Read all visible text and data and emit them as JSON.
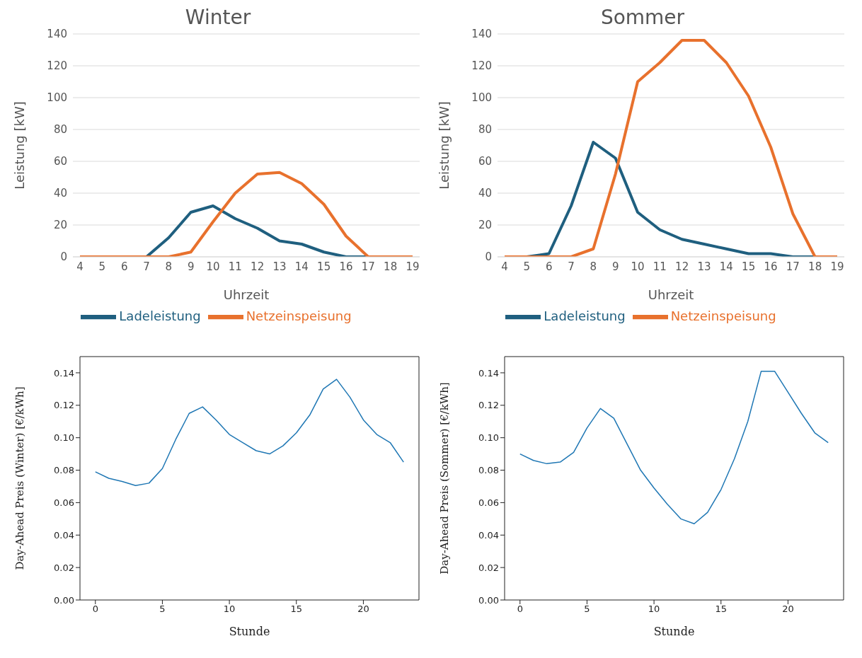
{
  "chart_data": [
    {
      "type": "line",
      "title": "Winter",
      "xlabel": "Uhrzeit",
      "ylabel": "Leistung [kW]",
      "categories": [
        "4",
        "5",
        "6",
        "7",
        "8",
        "9",
        "10",
        "11",
        "12",
        "13",
        "14",
        "15",
        "16",
        "17",
        "18",
        "19"
      ],
      "ylim": [
        0,
        140
      ],
      "yticks": [
        0,
        20,
        40,
        60,
        80,
        100,
        120,
        140
      ],
      "grid": "y",
      "legend": "bottom",
      "series": [
        {
          "name": "Ladeleistung",
          "color": "#1f5f7f",
          "values": [
            null,
            null,
            0,
            0,
            12,
            28,
            32,
            24,
            18,
            10,
            8,
            3,
            0,
            0,
            0,
            0
          ]
        },
        {
          "name": "Netzeinspeisung",
          "color": "#e8712d",
          "values": [
            0,
            0,
            0,
            0,
            0,
            3,
            22,
            40,
            52,
            53,
            46,
            33,
            13,
            0,
            0,
            0
          ]
        }
      ]
    },
    {
      "type": "line",
      "title": "Sommer",
      "xlabel": "Uhrzeit",
      "ylabel": "Leistung [kW]",
      "categories": [
        "4",
        "5",
        "6",
        "7",
        "8",
        "9",
        "10",
        "11",
        "12",
        "13",
        "14",
        "15",
        "16",
        "17",
        "18",
        "19"
      ],
      "ylim": [
        0,
        140
      ],
      "yticks": [
        0,
        20,
        40,
        60,
        80,
        100,
        120,
        140
      ],
      "grid": "y",
      "legend": "bottom",
      "series": [
        {
          "name": "Ladeleistung",
          "color": "#1f5f7f",
          "values": [
            0,
            0,
            2,
            32,
            72,
            62,
            28,
            17,
            11,
            8,
            5,
            2,
            2,
            0,
            0,
            0
          ]
        },
        {
          "name": "Netzeinspeisung",
          "color": "#e8712d",
          "values": [
            0,
            0,
            0,
            0,
            5,
            52,
            110,
            122,
            136,
            136,
            122,
            101,
            69,
            27,
            0,
            0
          ]
        }
      ]
    },
    {
      "type": "line",
      "xlabel": "Stunde",
      "ylabel": "Day-Ahead Preis (Winter) [€/kWh]",
      "x": [
        0,
        1,
        2,
        3,
        4,
        5,
        6,
        7,
        8,
        9,
        10,
        11,
        12,
        13,
        14,
        15,
        16,
        17,
        18,
        19,
        20,
        21,
        22,
        23
      ],
      "xlim": [
        -1.15,
        24.15
      ],
      "xticks": [
        0,
        5,
        10,
        15,
        20
      ],
      "ylim": [
        0,
        0.15
      ],
      "yticks": [
        {
          "value": 0,
          "label": "0.00"
        },
        {
          "value": 0.02,
          "label": "0.02"
        },
        {
          "value": 0.04,
          "label": "0.04"
        },
        {
          "value": 0.06,
          "label": "0.06"
        },
        {
          "value": 0.08,
          "label": "0.08"
        },
        {
          "value": 0.1,
          "label": "0.10"
        },
        {
          "value": 0.12,
          "label": "0.12"
        },
        {
          "value": 0.14,
          "label": "0.14"
        }
      ],
      "series": [
        {
          "color": "#1f77b4",
          "values": [
            0.079,
            0.075,
            0.073,
            0.0705,
            0.072,
            0.081,
            0.099,
            0.115,
            0.119,
            0.111,
            0.102,
            0.097,
            0.092,
            0.09,
            0.095,
            0.103,
            0.114,
            0.13,
            0.136,
            0.125,
            0.111,
            0.102,
            0.097,
            0.085
          ]
        }
      ]
    },
    {
      "type": "line",
      "xlabel": "Stunde",
      "ylabel": "Day-Ahead Preis (Sommer) [€/kWh]",
      "x": [
        0,
        1,
        2,
        3,
        4,
        5,
        6,
        7,
        8,
        9,
        10,
        11,
        12,
        13,
        14,
        15,
        16,
        17,
        18,
        19,
        20,
        21,
        22,
        23
      ],
      "xlim": [
        -1.15,
        24.15
      ],
      "xticks": [
        0,
        5,
        10,
        15,
        20
      ],
      "ylim": [
        0,
        0.15
      ],
      "yticks": [
        {
          "value": 0,
          "label": "0.00"
        },
        {
          "value": 0.02,
          "label": "0.02"
        },
        {
          "value": 0.04,
          "label": "0.04"
        },
        {
          "value": 0.06,
          "label": "0.06"
        },
        {
          "value": 0.08,
          "label": "0.08"
        },
        {
          "value": 0.1,
          "label": "0.10"
        },
        {
          "value": 0.12,
          "label": "0.12"
        },
        {
          "value": 0.14,
          "label": "0.14"
        }
      ],
      "series": [
        {
          "color": "#1f77b4",
          "values": [
            0.09,
            0.086,
            0.084,
            0.085,
            0.091,
            0.106,
            0.118,
            0.112,
            0.096,
            0.08,
            0.069,
            0.059,
            0.05,
            0.047,
            0.054,
            0.068,
            0.087,
            0.11,
            0.141,
            0.141,
            0.128,
            0.115,
            0.103,
            0.097
          ]
        }
      ]
    }
  ]
}
